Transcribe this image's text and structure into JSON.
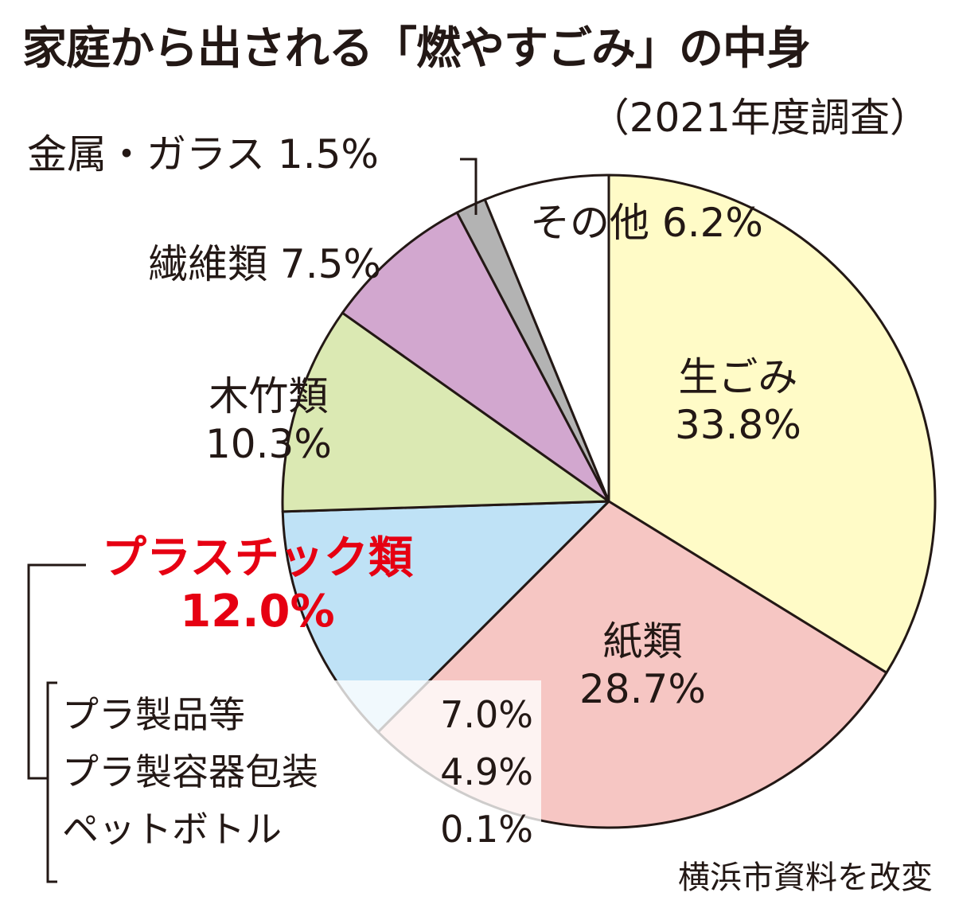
{
  "title": "家庭から出される「燃やすごみ」の中身",
  "subtitle": "（2021年度調査）",
  "source": "横浜市資料を改変",
  "chart_data": {
    "type": "pie",
    "title": "家庭から出される「燃やすごみ」の中身",
    "subtitle": "（2021年度調査）",
    "unit": "%",
    "slices": [
      {
        "name": "生ごみ",
        "value": 33.8,
        "label": "33.8%",
        "color": "#fffbc7"
      },
      {
        "name": "紙類",
        "value": 28.7,
        "label": "28.7%",
        "color": "#f6c6c3"
      },
      {
        "name": "プラスチック類",
        "value": 12.0,
        "label": "12.0%",
        "color": "#bfe2f6"
      },
      {
        "name": "木竹類",
        "value": 10.3,
        "label": "10.3%",
        "color": "#dbe9b3"
      },
      {
        "name": "繊維類",
        "value": 7.5,
        "label": "7.5%",
        "color": "#d2a7cf"
      },
      {
        "name": "金属・ガラス",
        "value": 1.5,
        "label": "1.5%",
        "color": "#b3b3b3"
      },
      {
        "name": "その他",
        "value": 6.2,
        "label": "6.2%",
        "color": "#ffffff"
      }
    ],
    "plastic_breakdown": [
      {
        "name": "プラ製品等",
        "label": "7.0%"
      },
      {
        "name": "プラ製容器包装",
        "label": "4.9%"
      },
      {
        "name": "ペットボトル",
        "label": "0.1%"
      }
    ],
    "highlight": "プラスチック類",
    "highlight_color": "#e60012",
    "stroke_color": "#231815"
  }
}
